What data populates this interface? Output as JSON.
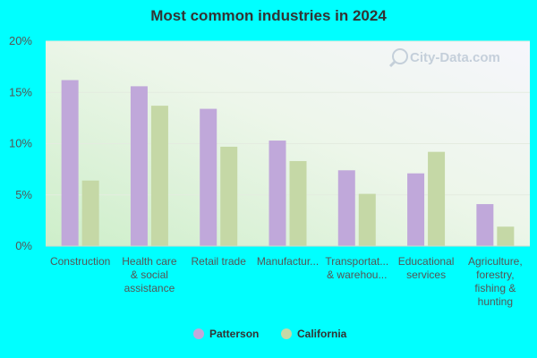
{
  "chart_data": {
    "type": "bar",
    "title": "Most common industries in 2024",
    "categories": [
      [
        "Construction"
      ],
      [
        "Health care",
        "& social",
        "assistance"
      ],
      [
        "Retail trade"
      ],
      [
        "Manufactur..."
      ],
      [
        "Transportat...",
        "& warehou..."
      ],
      [
        "Educational",
        "services"
      ],
      [
        "Agriculture,",
        "forestry,",
        "fishing &",
        "hunting"
      ]
    ],
    "series": [
      {
        "name": "Patterson",
        "color": "#c0a8da",
        "values": [
          16.2,
          15.6,
          13.4,
          10.3,
          7.4,
          7.1,
          4.1
        ]
      },
      {
        "name": "California",
        "color": "#c5d8a6",
        "values": [
          6.4,
          13.7,
          9.7,
          8.3,
          5.1,
          9.2,
          1.9
        ]
      }
    ],
    "yticks": [
      "0%",
      "5%",
      "10%",
      "15%",
      "20%"
    ],
    "ylim": [
      0,
      20
    ],
    "grid": true,
    "legend_position": "bottom-center",
    "watermark": "City-Data.com"
  }
}
